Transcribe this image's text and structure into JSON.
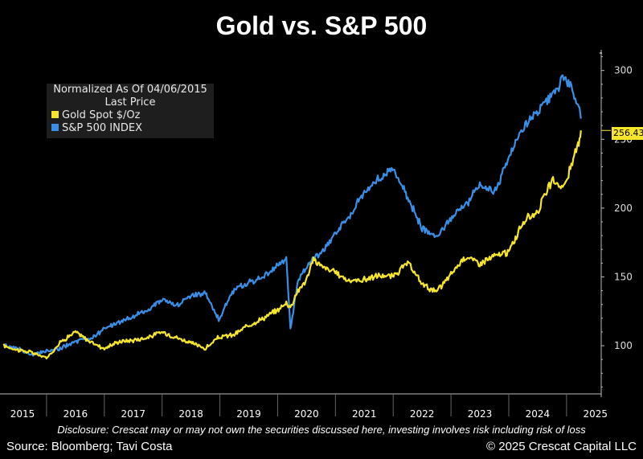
{
  "title": "Gold vs. S&P 500",
  "disclosure": "Disclosure: Crescat may or may not own the securities discussed here, investing involves risk including risk of loss",
  "source": "Source: Bloomberg; Tavi Costa",
  "copyright": "© 2025 Crescat Capital LLC",
  "legend": {
    "title_line1": "Normalized As Of 04/06/2015",
    "title_line2": "Last Price",
    "items": [
      "Gold Spot $/Oz",
      "S&P 500 INDEX"
    ]
  },
  "last_value_label": "256.43",
  "colors": {
    "background": "#000000",
    "gold": "#f5e62c",
    "sp500": "#3b8ee6",
    "axis": "#bbbbbb",
    "text": "#ffffff"
  },
  "chart_data": {
    "type": "line",
    "title": "Gold vs. S&P 500",
    "subtitle": "Normalized As Of 04/06/2015",
    "xlabel": "",
    "ylabel": "",
    "x_ticks": [
      "2015",
      "2016",
      "2017",
      "2018",
      "2019",
      "2020",
      "2021",
      "2022",
      "2023",
      "2024",
      "2025"
    ],
    "y_ticks": [
      100,
      150,
      200,
      250,
      300
    ],
    "xlim": [
      2015.25,
      2025.6
    ],
    "ylim": [
      65,
      315
    ],
    "grid": false,
    "legend_position": "top-left",
    "x": [
      2015.26,
      2015.5,
      2015.75,
      2016.0,
      2016.25,
      2016.5,
      2016.75,
      2017.0,
      2017.25,
      2017.5,
      2017.75,
      2018.0,
      2018.25,
      2018.5,
      2018.75,
      2018.98,
      2019.25,
      2019.5,
      2019.75,
      2020.0,
      2020.15,
      2020.22,
      2020.35,
      2020.5,
      2020.62,
      2020.75,
      2021.0,
      2021.25,
      2021.5,
      2021.75,
      2021.99,
      2022.25,
      2022.5,
      2022.75,
      2023.0,
      2023.25,
      2023.5,
      2023.75,
      2024.0,
      2024.25,
      2024.5,
      2024.75,
      2024.95,
      2025.1,
      2025.2,
      2025.25
    ],
    "series": [
      {
        "name": "Gold Spot $/Oz",
        "values": [
          100,
          97,
          95,
          91,
          103,
          110,
          103,
          98,
          103,
          104,
          106,
          110,
          106,
          102,
          98,
          106,
          108,
          115,
          120,
          126,
          131,
          128,
          140,
          148,
          163,
          158,
          153,
          147,
          148,
          151,
          150,
          160,
          145,
          139,
          152,
          165,
          160,
          165,
          168,
          190,
          198,
          220,
          215,
          232,
          247,
          256.43
        ]
      },
      {
        "name": "S&P 500 INDEX",
        "values": [
          100,
          98,
          93,
          96,
          98,
          103,
          105,
          112,
          117,
          121,
          126,
          134,
          129,
          136,
          139,
          119,
          141,
          146,
          150,
          158,
          163,
          113,
          146,
          158,
          164,
          167,
          182,
          195,
          211,
          222,
          228,
          208,
          185,
          180,
          193,
          202,
          218,
          211,
          237,
          258,
          270,
          280,
          295,
          287,
          275,
          265
        ]
      }
    ]
  }
}
